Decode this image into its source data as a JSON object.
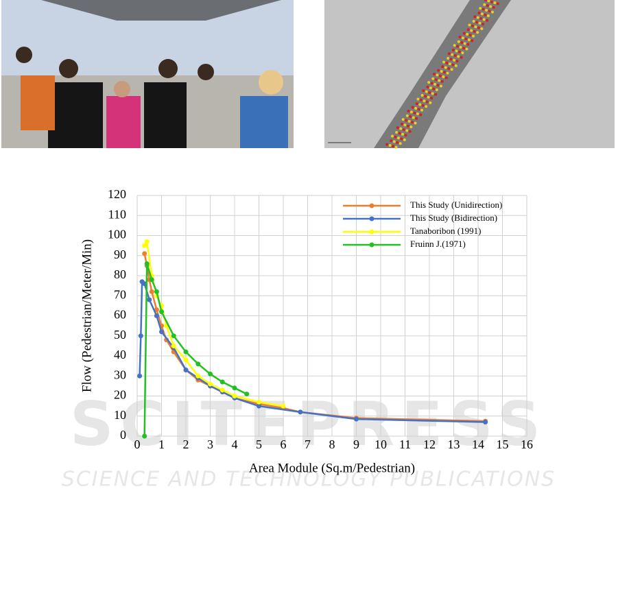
{
  "chart_data": {
    "type": "line",
    "xlabel": "Area Module (Sq.m/Pedestrian)",
    "ylabel": "Flow (Pedestrian/Meter/Min)",
    "xlim": [
      0,
      16
    ],
    "xticks": [
      0,
      1,
      2,
      3,
      4,
      5,
      6,
      7,
      8,
      9,
      10,
      11,
      12,
      13,
      14,
      15,
      16
    ],
    "ylim": [
      0,
      120
    ],
    "yticks": [
      0,
      10,
      20,
      30,
      40,
      50,
      60,
      70,
      80,
      90,
      100,
      110,
      120
    ],
    "grid": true,
    "legend": "top-right",
    "series": [
      {
        "name": "This Study (Unidirection)",
        "color": "#ed7d31",
        "x": [
          0.3,
          0.4,
          0.5,
          0.6,
          0.8,
          1,
          1.2,
          1.5,
          2,
          2.5,
          3,
          3.5,
          4,
          5,
          6,
          6.7,
          9,
          14.3
        ],
        "values": [
          91,
          85,
          78,
          72,
          63,
          55,
          48,
          42,
          33,
          28,
          25,
          22,
          19,
          16,
          14,
          12,
          9,
          7.5
        ]
      },
      {
        "name": "This Study (Bidirection)",
        "color": "#4472c4",
        "x": [
          0.1,
          0.15,
          0.2,
          0.3,
          0.5,
          0.8,
          1,
          1.5,
          2,
          2.5,
          3,
          3.5,
          4,
          5,
          6.7,
          9,
          14.3
        ],
        "values": [
          30,
          50,
          77,
          76,
          68,
          60,
          52,
          44,
          33,
          29,
          25,
          22,
          19,
          15,
          12,
          8.5,
          7
        ]
      },
      {
        "name": "Tanaboribon (1991)",
        "color": "#ffff00",
        "x": [
          0.3,
          0.4,
          0.6,
          0.8,
          1,
          1.2,
          1.5,
          2,
          2.5,
          3,
          3.5,
          4,
          5,
          6
        ],
        "values": [
          95,
          97,
          80,
          70,
          65,
          55,
          45,
          38,
          30,
          26,
          23,
          20,
          17,
          15
        ]
      },
      {
        "name": "Fruinn J.(1971)",
        "color": "#22c022",
        "x": [
          0.3,
          0.4,
          0.6,
          0.8,
          1,
          1.5,
          2,
          2.5,
          3,
          3.5,
          4,
          4.5
        ],
        "values": [
          0,
          86,
          78,
          72,
          62,
          50,
          42,
          36,
          31,
          27,
          24,
          21
        ]
      }
    ]
  },
  "watermark": {
    "title": "SCITEPRESS",
    "subtitle": "SCIENCE AND TECHNOLOGY PUBLICATIONS"
  }
}
